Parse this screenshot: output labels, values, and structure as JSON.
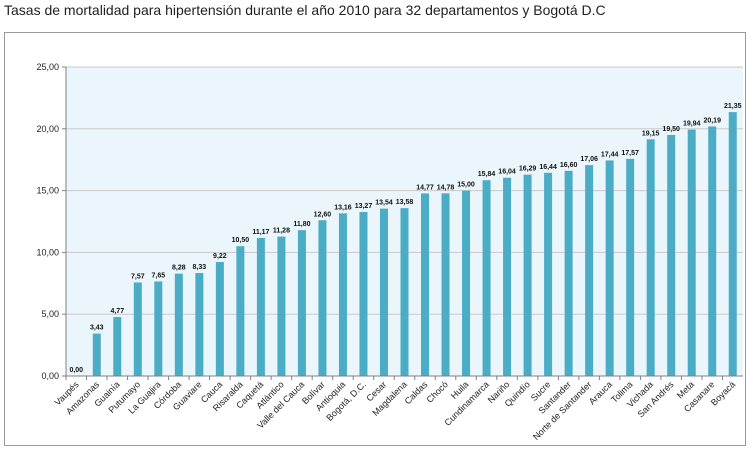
{
  "page": {
    "title": "Tasas de mortalidad para hipertensión durante el año 2010 para 32 departamentos y Bogotá D.C"
  },
  "chart_data": {
    "type": "bar",
    "title": "Tasas de mortalidad para hipertensión durante el año 2010 para 32 departamentos y Bogotá D.C",
    "xlabel": "",
    "ylabel": "",
    "ylim": [
      0,
      25
    ],
    "yticks": [
      0,
      5,
      10,
      15,
      20,
      25
    ],
    "ytick_labels": [
      "0,00",
      "5,00",
      "10,00",
      "15,00",
      "20,00",
      "25,00"
    ],
    "grid": true,
    "bar_color": "#4bacc6",
    "plot_background": "#eaf6fb",
    "categories": [
      "Vaupés",
      "Amazonas",
      "Guainía",
      "Putumayo",
      "La Guajira",
      "Córdoba",
      "Guaviare",
      "Cauca",
      "Risaralda",
      "Caquetá",
      "Atlántico",
      "Valle del Cauca",
      "Bolívar",
      "Antioquia",
      "Bogotá, D.C.",
      "Cesar",
      "Magdalena",
      "Caldas",
      "Chocó",
      "Huila",
      "Cundinamarca",
      "Nariño",
      "Quindío",
      "Sucre",
      "Santander",
      "Norte de Santander",
      "Arauca",
      "Tolima",
      "Vichada",
      "San Andrés",
      "Meta",
      "Casanare",
      "Boyacá"
    ],
    "values": [
      0.0,
      3.43,
      4.77,
      7.57,
      7.65,
      8.28,
      8.33,
      9.22,
      10.5,
      11.17,
      11.28,
      11.8,
      12.6,
      13.16,
      13.27,
      13.54,
      13.58,
      14.77,
      14.78,
      15.0,
      15.84,
      16.04,
      16.29,
      16.44,
      16.6,
      17.06,
      17.44,
      17.57,
      19.15,
      19.5,
      19.94,
      20.19,
      21.35
    ],
    "value_labels": [
      "0,00",
      "3,43",
      "4,77",
      "7,57",
      "7,65",
      "8,28",
      "8,33",
      "9,22",
      "10,50",
      "11,17",
      "11,28",
      "11,80",
      "12,60",
      "13,16",
      "13,27",
      "13,54",
      "13,58",
      "14,77",
      "14,78",
      "15,00",
      "15,84",
      "16,04",
      "16,29",
      "16,44",
      "16,60",
      "17,06",
      "17,44",
      "17,57",
      "19,15",
      "19,50",
      "19,94",
      "20,19",
      "21,35"
    ]
  }
}
